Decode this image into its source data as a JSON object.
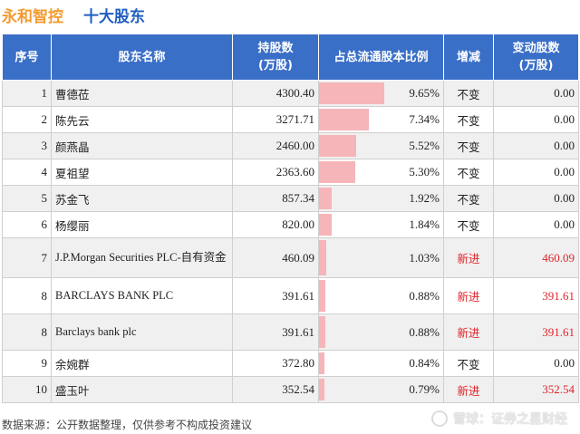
{
  "header": {
    "company": "永和智控",
    "section": "十大股东"
  },
  "table": {
    "columns": [
      "序号",
      "股东名称",
      "持股数\n(万股)",
      "占总流通股本比例",
      "增减",
      "变动股数\n(万股)"
    ],
    "rows": [
      {
        "idx": "1",
        "name": "曹德莅",
        "shares": "4300.40",
        "ratio": "9.65%",
        "ratio_value": 9.65,
        "change": "不变",
        "delta": "0.00",
        "is_new": false
      },
      {
        "idx": "2",
        "name": "陈先云",
        "shares": "3271.71",
        "ratio": "7.34%",
        "ratio_value": 7.34,
        "change": "不变",
        "delta": "0.00",
        "is_new": false
      },
      {
        "idx": "3",
        "name": "颜燕晶",
        "shares": "2460.00",
        "ratio": "5.52%",
        "ratio_value": 5.52,
        "change": "不变",
        "delta": "0.00",
        "is_new": false
      },
      {
        "idx": "4",
        "name": "夏祖望",
        "shares": "2363.60",
        "ratio": "5.30%",
        "ratio_value": 5.3,
        "change": "不变",
        "delta": "0.00",
        "is_new": false
      },
      {
        "idx": "5",
        "name": "苏金飞",
        "shares": "857.34",
        "ratio": "1.92%",
        "ratio_value": 1.92,
        "change": "不变",
        "delta": "0.00",
        "is_new": false
      },
      {
        "idx": "6",
        "name": "杨缨丽",
        "shares": "820.00",
        "ratio": "1.84%",
        "ratio_value": 1.84,
        "change": "不变",
        "delta": "0.00",
        "is_new": false
      },
      {
        "idx": "7",
        "name": "J.P.Morgan Securities PLC-自有资金",
        "shares": "460.09",
        "ratio": "1.03%",
        "ratio_value": 1.03,
        "change": "新进",
        "delta": "460.09",
        "is_new": true
      },
      {
        "idx": "8",
        "name": "BARCLAYS BANK PLC",
        "shares": "391.61",
        "ratio": "0.88%",
        "ratio_value": 0.88,
        "change": "新进",
        "delta": "391.61",
        "is_new": true
      },
      {
        "idx": "8",
        "name": "Barclays bank plc",
        "shares": "391.61",
        "ratio": "0.88%",
        "ratio_value": 0.88,
        "change": "新进",
        "delta": "391.61",
        "is_new": true
      },
      {
        "idx": "9",
        "name": "余婉群",
        "shares": "372.80",
        "ratio": "0.84%",
        "ratio_value": 0.84,
        "change": "不变",
        "delta": "0.00",
        "is_new": false
      },
      {
        "idx": "10",
        "name": "盛玉叶",
        "shares": "352.54",
        "ratio": "0.79%",
        "ratio_value": 0.79,
        "change": "新进",
        "delta": "352.54",
        "is_new": true
      }
    ]
  },
  "footer": {
    "source": "数据来源：公开数据整理，仅供参考不构成投资建议",
    "brand": "雪球：证券之星财经"
  },
  "colors": {
    "header_bg": "#3a6fc8",
    "bar": "#f6b5b9",
    "new_red": "#e0242b",
    "company": "#f39a2e",
    "section": "#1f5fbf"
  }
}
